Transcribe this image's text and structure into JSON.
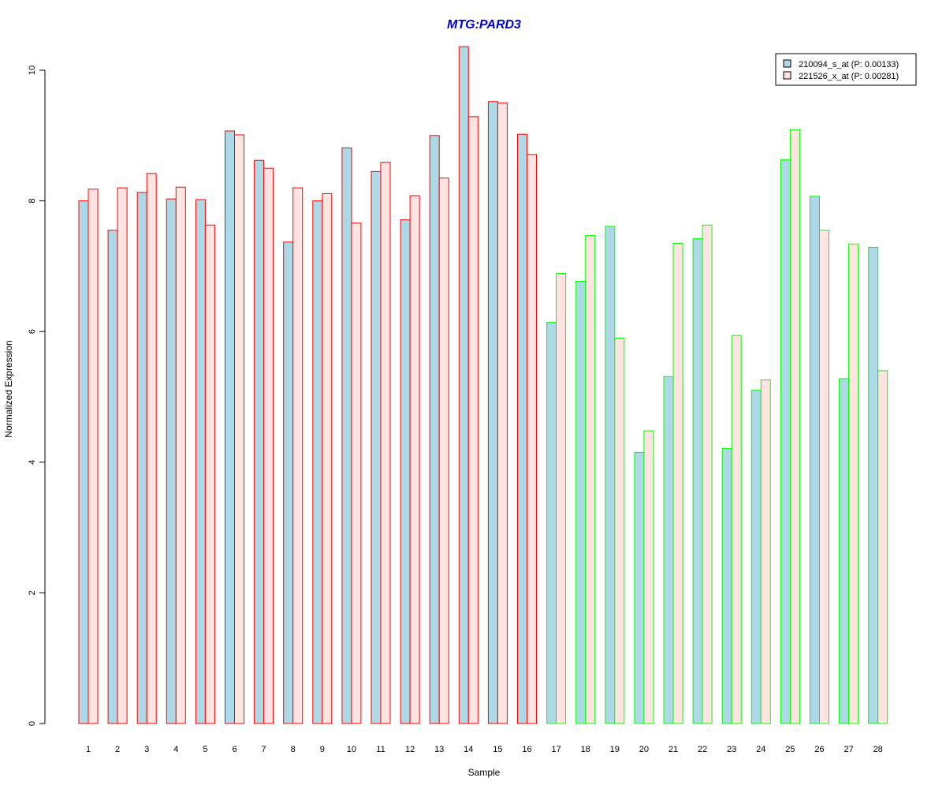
{
  "chart_data": {
    "type": "bar",
    "title": "MTG:PARD3",
    "xlabel": "Sample",
    "ylabel": "Normalized Expression",
    "ylim": [
      0,
      10.5
    ],
    "y_ticks": [
      "0",
      "2",
      "4",
      "6",
      "8",
      "10"
    ],
    "y_tick_values": [
      0,
      2,
      4,
      6,
      8,
      10
    ],
    "categories": [
      "1",
      "2",
      "3",
      "4",
      "5",
      "6",
      "7",
      "8",
      "9",
      "10",
      "11",
      "12",
      "13",
      "14",
      "15",
      "16",
      "17",
      "18",
      "19",
      "20",
      "21",
      "22",
      "23",
      "24",
      "25",
      "26",
      "27",
      "28"
    ],
    "series": [
      {
        "name": "210094_s_at (P: 0.00133)",
        "fill": "#add8e6",
        "values": [
          8.0,
          7.55,
          8.13,
          8.03,
          8.02,
          9.07,
          8.62,
          7.37,
          8.0,
          8.81,
          8.45,
          7.71,
          9.0,
          10.36,
          9.52,
          9.02,
          6.14,
          6.77,
          7.61,
          4.15,
          5.31,
          7.42,
          4.21,
          5.1,
          8.63,
          8.07,
          5.28,
          7.29
        ]
      },
      {
        "name": "221526_x_at (P: 0.00281)",
        "fill": "#ffe4e1",
        "values": [
          8.18,
          8.2,
          8.42,
          8.21,
          7.63,
          9.01,
          8.5,
          8.2,
          8.11,
          7.66,
          8.59,
          8.08,
          8.35,
          9.29,
          9.5,
          8.71,
          6.89,
          7.47,
          5.9,
          4.48,
          7.35,
          7.63,
          5.94,
          5.26,
          9.09,
          7.55,
          7.34,
          5.4
        ]
      }
    ],
    "group_border_colors": [
      "#ff0000",
      "#ff0000",
      "#ff0000",
      "#ff0000",
      "#ff0000",
      "#ff0000",
      "#ff0000",
      "#ff0000",
      "#ff0000",
      "#ff0000",
      "#ff0000",
      "#ff0000",
      "#ff0000",
      "#ff0000",
      "#ff0000",
      "#ff0000",
      "#00ff00",
      "#00ff00",
      "#00ff00",
      "#00ff00",
      "#00ff00",
      "#00ff00",
      "#00ff00",
      "#00ff00",
      "#00ff00",
      "#00ff00",
      "#00ff00",
      "#00ff00"
    ],
    "title_color": "#0000cc",
    "legend_position": "top-right",
    "grid": false
  }
}
